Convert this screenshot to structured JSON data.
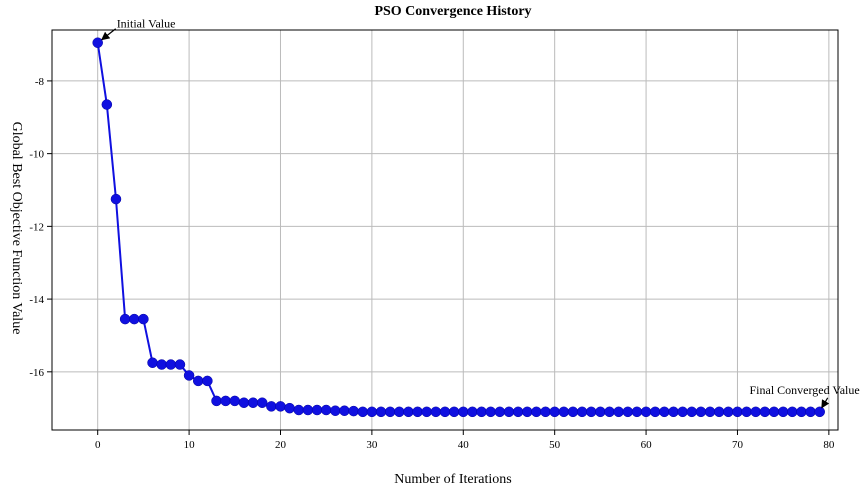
{
  "chart_data": {
    "type": "line",
    "title": "PSO Convergence History",
    "xlabel": "Number of Iterations",
    "ylabel": "Global Best Objective Function Value",
    "xlim": [
      -5,
      81
    ],
    "ylim": [
      -17.6,
      -6.6
    ],
    "xticks": [
      0,
      10,
      20,
      30,
      40,
      50,
      60,
      70,
      80
    ],
    "yticks": [
      -8,
      -10,
      -12,
      -14,
      -16
    ],
    "grid": true,
    "legend": "none",
    "series_color": "#1010e0",
    "x": [
      0,
      1,
      2,
      3,
      4,
      5,
      6,
      7,
      8,
      9,
      10,
      11,
      12,
      13,
      14,
      15,
      16,
      17,
      18,
      19,
      20,
      21,
      22,
      23,
      24,
      25,
      26,
      27,
      28,
      29,
      30,
      31,
      32,
      33,
      34,
      35,
      36,
      37,
      38,
      39,
      40,
      41,
      42,
      43,
      44,
      45,
      46,
      47,
      48,
      49,
      50,
      51,
      52,
      53,
      54,
      55,
      56,
      57,
      58,
      59,
      60,
      61,
      62,
      63,
      64,
      65,
      66,
      67,
      68,
      69,
      70,
      71,
      72,
      73,
      74,
      75,
      76,
      77,
      78,
      79
    ],
    "values": [
      -6.95,
      -8.65,
      -11.25,
      -14.55,
      -14.55,
      -14.55,
      -15.75,
      -15.8,
      -15.8,
      -15.8,
      -16.1,
      -16.25,
      -16.25,
      -16.8,
      -16.8,
      -16.8,
      -16.85,
      -16.85,
      -16.85,
      -16.95,
      -16.95,
      -17.0,
      -17.05,
      -17.05,
      -17.05,
      -17.05,
      -17.07,
      -17.07,
      -17.08,
      -17.1,
      -17.1,
      -17.1,
      -17.1,
      -17.1,
      -17.1,
      -17.1,
      -17.1,
      -17.1,
      -17.1,
      -17.1,
      -17.1,
      -17.1,
      -17.1,
      -17.1,
      -17.1,
      -17.1,
      -17.1,
      -17.1,
      -17.1,
      -17.1,
      -17.1,
      -17.1,
      -17.1,
      -17.1,
      -17.1,
      -17.1,
      -17.1,
      -17.1,
      -17.1,
      -17.1,
      -17.1,
      -17.1,
      -17.1,
      -17.1,
      -17.1,
      -17.1,
      -17.1,
      -17.1,
      -17.1,
      -17.1,
      -17.1,
      -17.1,
      -17.1,
      -17.1,
      -17.1,
      -17.1,
      -17.1,
      -17.1,
      -17.1,
      -17.1
    ],
    "annotations": [
      {
        "text": "Initial Value",
        "x": 0,
        "y": -6.95
      },
      {
        "text": "Final Converged Value",
        "x": 79,
        "y": -17.1
      }
    ]
  }
}
